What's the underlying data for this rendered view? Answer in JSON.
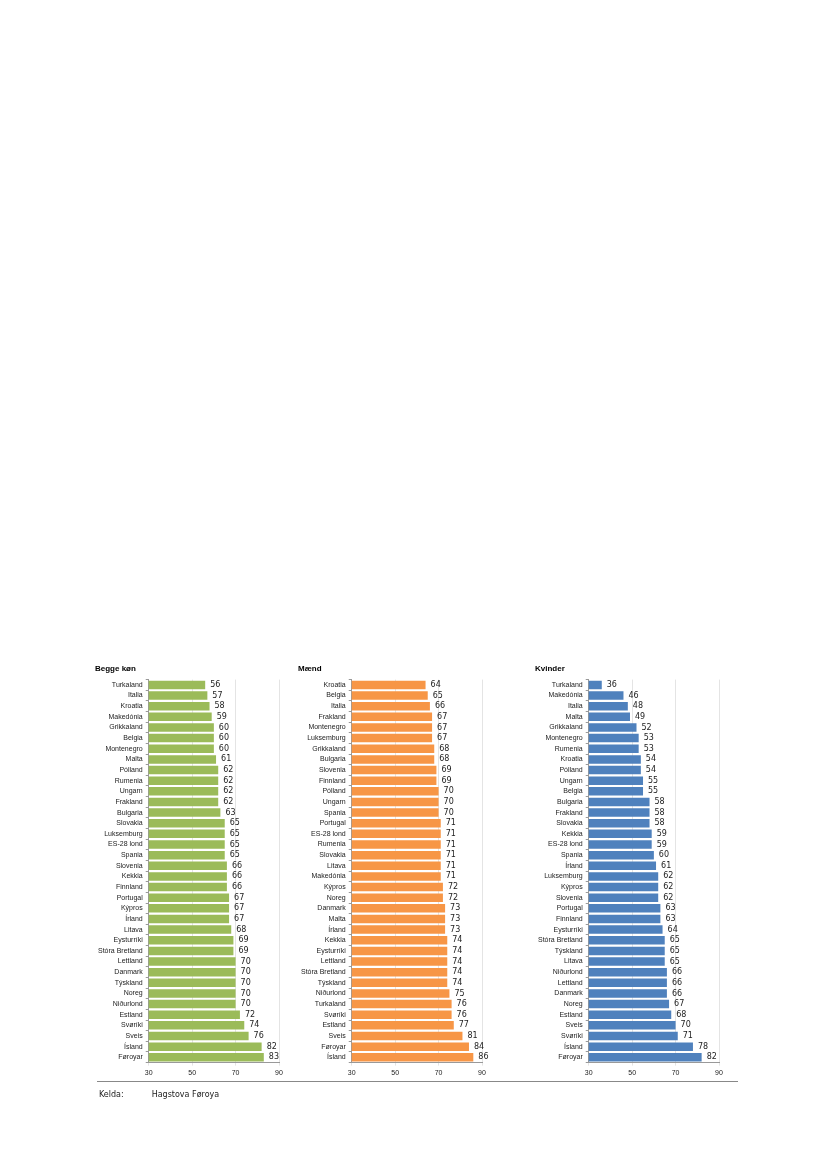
{
  "chart_data": [
    {
      "type": "bar",
      "orientation": "horizontal",
      "title": "Begge køn",
      "color": "#9bbb59",
      "grid": "x",
      "data_labels": true,
      "xlim": [
        30,
        90
      ],
      "xticks": [
        30,
        50,
        70,
        90
      ],
      "categories": [
        "Turkaland",
        "Italia",
        "Kroatia",
        "Makedónia",
        "Grikkaland",
        "Belgia",
        "Montenegro",
        "Malta",
        "Pólland",
        "Rumenia",
        "Ungarn",
        "Frakland",
        "Bulgaria",
        "Slovakia",
        "Luksemburg",
        "ES-28 lond",
        "Spania",
        "Slovenia",
        "Kekkia",
        "Finnland",
        "Portugal",
        "Kýpros",
        "Írland",
        "Litava",
        "Eysturríki",
        "Stóra Bretland",
        "Lettland",
        "Danmark",
        "Týskland",
        "Noreg",
        "Niðurlond",
        "Estland",
        "Svøríki",
        "Sveis",
        "Ísland",
        "Føroyar"
      ],
      "values": [
        56,
        57,
        58,
        59,
        60,
        60,
        60,
        61,
        62,
        62,
        62,
        62,
        63,
        65,
        65,
        65,
        65,
        66,
        66,
        66,
        67,
        67,
        67,
        68,
        69,
        69,
        70,
        70,
        70,
        70,
        70,
        72,
        74,
        76,
        82,
        83
      ],
      "annotations": [
        "Kelda:",
        "Hagstova Føroya"
      ]
    },
    {
      "type": "bar",
      "orientation": "horizontal",
      "title": "Mænd",
      "color": "#f79646",
      "grid": "x",
      "data_labels": true,
      "xlim": [
        30,
        90
      ],
      "xticks": [
        30,
        50,
        70,
        90
      ],
      "categories": [
        "Kroatia",
        "Belgia",
        "Italia",
        "Frakland",
        "Montenegro",
        "Luksemburg",
        "Grikkaland",
        "Bulgaria",
        "Slovenia",
        "Finnland",
        "Pólland",
        "Ungarn",
        "Spania",
        "Portugal",
        "ES-28 lond",
        "Rumenia",
        "Slovakia",
        "Litava",
        "Makedónia",
        "Kýpros",
        "Noreg",
        "Danmark",
        "Malta",
        "Írland",
        "Kekkia",
        "Eysturríki",
        "Lettland",
        "Stóra Bretland",
        "Týskland",
        "Niðurlond",
        "Turkaland",
        "Svøríki",
        "Estland",
        "Sveis",
        "Føroyar",
        "Ísland"
      ],
      "values": [
        64,
        65,
        66,
        67,
        67,
        67,
        68,
        68,
        69,
        69,
        70,
        70,
        70,
        71,
        71,
        71,
        71,
        71,
        71,
        72,
        72,
        73,
        73,
        73,
        74,
        74,
        74,
        74,
        74,
        75,
        76,
        76,
        77,
        81,
        84,
        86
      ]
    },
    {
      "type": "bar",
      "orientation": "horizontal",
      "title": "Kvinder",
      "color": "#4f81bd",
      "grid": "x",
      "data_labels": true,
      "xlim": [
        30,
        90
      ],
      "xticks": [
        30,
        50,
        70,
        90
      ],
      "categories": [
        "Turkaland",
        "Makedónia",
        "Italia",
        "Malta",
        "Grikkaland",
        "Montenegro",
        "Rumenia",
        "Kroatia",
        "Pólland",
        "Ungarn",
        "Belgia",
        "Bulgaria",
        "Frakland",
        "Slovakia",
        "Kekkia",
        "ES-28 lond",
        "Spania",
        "Írland",
        "Luksemburg",
        "Kýpros",
        "Slovenia",
        "Portugal",
        "Finnland",
        "Eysturríki",
        "Stóra Bretland",
        "Týskland",
        "Litava",
        "Niðurlond",
        "Lettland",
        "Danmark",
        "Noreg",
        "Estland",
        "Sveis",
        "Svøríki",
        "Ísland",
        "Føroyar"
      ],
      "values": [
        36,
        46,
        48,
        49,
        52,
        53,
        53,
        54,
        54,
        55,
        55,
        58,
        58,
        58,
        59,
        59,
        60,
        61,
        62,
        62,
        62,
        63,
        63,
        64,
        65,
        65,
        65,
        66,
        66,
        66,
        67,
        68,
        70,
        71,
        78,
        82
      ]
    }
  ]
}
